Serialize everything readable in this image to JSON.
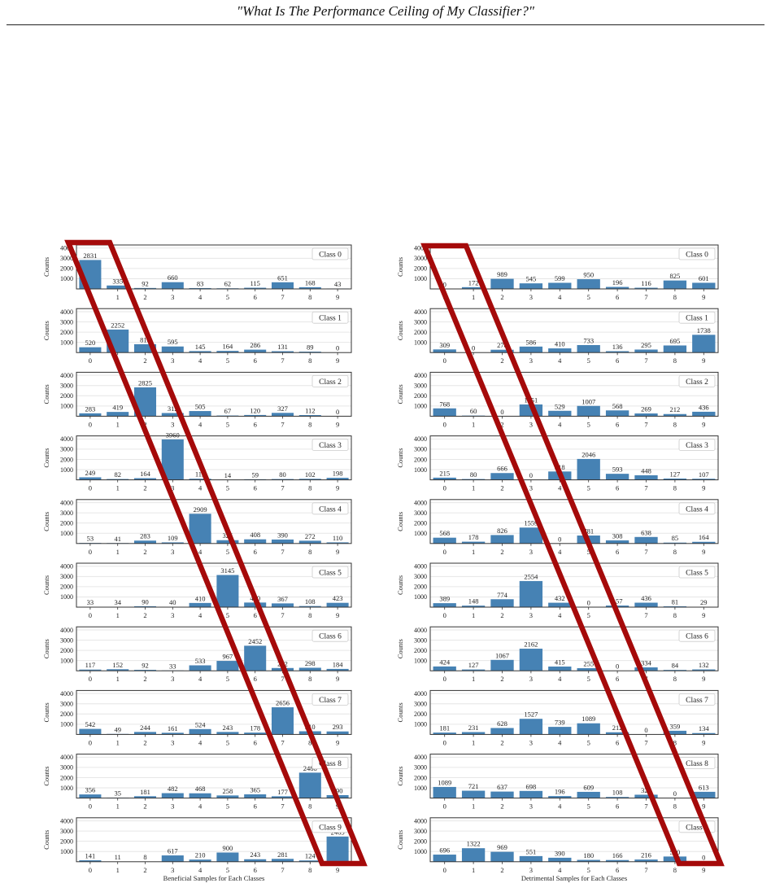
{
  "header": {
    "title": "\"What Is The Performance Ceiling of My Classifier?\""
  },
  "colors": {
    "bar": "#4682b4",
    "highlight": "#a50a0a",
    "axis": "#333333",
    "grid": "#e6e6e6"
  },
  "chart_data": [
    {
      "type": "bar",
      "name": "beneficial",
      "xlabel": "Beneficial Samples for Each Classes",
      "ylabel": "Counts",
      "categories": [
        "0",
        "1",
        "2",
        "3",
        "4",
        "5",
        "6",
        "7",
        "8",
        "9"
      ],
      "yticks": [
        1000,
        2000,
        3000,
        4000
      ],
      "ylim": [
        0,
        4300
      ],
      "grid": true,
      "legend_position": "top-right",
      "series": [
        {
          "name": "Class 0",
          "values": [
            2831,
            335,
            92,
            660,
            83,
            62,
            115,
            651,
            168,
            43
          ]
        },
        {
          "name": "Class 1",
          "values": [
            520,
            2252,
            818,
            595,
            145,
            164,
            286,
            131,
            89,
            0
          ]
        },
        {
          "name": "Class 2",
          "values": [
            283,
            419,
            2825,
            312,
            505,
            67,
            120,
            327,
            112,
            0
          ]
        },
        {
          "name": "Class 3",
          "values": [
            249,
            82,
            164,
            3960,
            112,
            14,
            59,
            80,
            102,
            198
          ]
        },
        {
          "name": "Class 4",
          "values": [
            53,
            41,
            283,
            109,
            2909,
            325,
            408,
            390,
            272,
            110
          ]
        },
        {
          "name": "Class 5",
          "values": [
            33,
            34,
            90,
            40,
            410,
            3145,
            450,
            367,
            108,
            423
          ]
        },
        {
          "name": "Class 6",
          "values": [
            117,
            152,
            92,
            33,
            533,
            967,
            2452,
            272,
            298,
            184
          ]
        },
        {
          "name": "Class 7",
          "values": [
            542,
            49,
            244,
            161,
            524,
            243,
            178,
            2656,
            310,
            293
          ]
        },
        {
          "name": "Class 8",
          "values": [
            356,
            35,
            181,
            482,
            468,
            258,
            365,
            177,
            2488,
            290
          ]
        },
        {
          "name": "Class 9",
          "values": [
            141,
            11,
            8,
            617,
            210,
            900,
            243,
            281,
            124,
            2465
          ]
        }
      ]
    },
    {
      "type": "bar",
      "name": "detrimental",
      "xlabel": "Detrimental Samples for Each Classes",
      "ylabel": "Counts",
      "categories": [
        "0",
        "1",
        "2",
        "3",
        "4",
        "5",
        "6",
        "7",
        "8",
        "9"
      ],
      "yticks": [
        1000,
        2000,
        3000,
        4000
      ],
      "ylim": [
        0,
        4300
      ],
      "grid": true,
      "legend_position": "top-right",
      "series": [
        {
          "name": "Class 0",
          "values": [
            0,
            172,
            989,
            545,
            599,
            950,
            196,
            116,
            825,
            601
          ]
        },
        {
          "name": "Class 1",
          "values": [
            309,
            0,
            278,
            586,
            410,
            733,
            136,
            295,
            695,
            1738
          ]
        },
        {
          "name": "Class 2",
          "values": [
            768,
            60,
            0,
            1151,
            529,
            1007,
            568,
            269,
            212,
            436
          ]
        },
        {
          "name": "Class 3",
          "values": [
            215,
            80,
            666,
            0,
            818,
            2046,
            593,
            448,
            127,
            107
          ]
        },
        {
          "name": "Class 4",
          "values": [
            568,
            178,
            826,
            1559,
            0,
            781,
            308,
            638,
            85,
            164
          ]
        },
        {
          "name": "Class 5",
          "values": [
            389,
            148,
            774,
            2554,
            432,
            0,
            157,
            436,
            81,
            29
          ]
        },
        {
          "name": "Class 6",
          "values": [
            424,
            127,
            1067,
            2162,
            415,
            255,
            0,
            334,
            84,
            132
          ]
        },
        {
          "name": "Class 7",
          "values": [
            181,
            231,
            628,
            1527,
            739,
            1089,
            212,
            0,
            359,
            134
          ]
        },
        {
          "name": "Class 8",
          "values": [
            1089,
            721,
            637,
            698,
            196,
            609,
            108,
            329,
            0,
            613
          ]
        },
        {
          "name": "Class 9",
          "values": [
            696,
            1322,
            969,
            551,
            390,
            180,
            166,
            216,
            510,
            0
          ]
        }
      ]
    }
  ]
}
